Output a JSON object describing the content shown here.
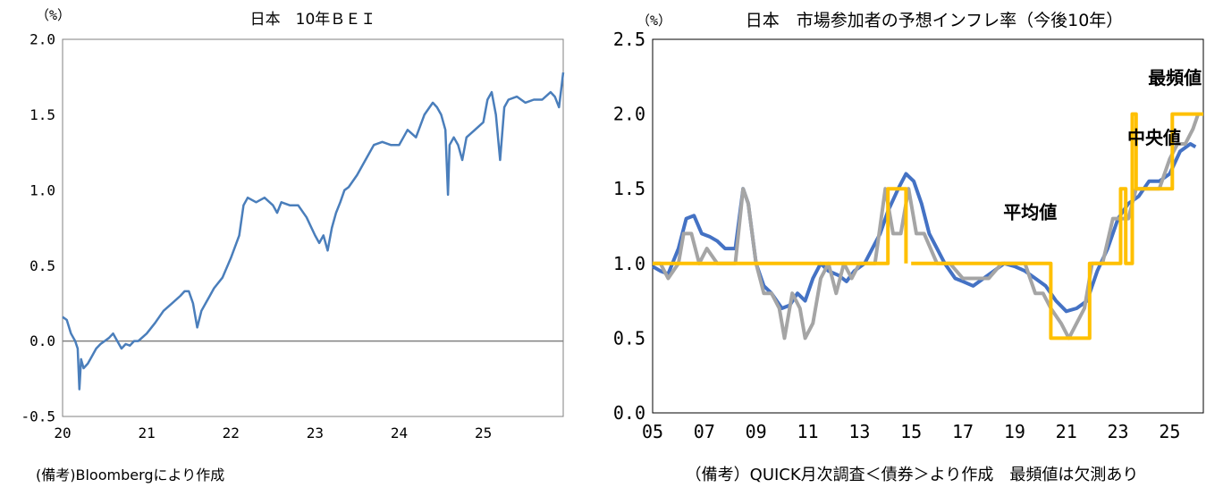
{
  "chart_data": [
    {
      "type": "line",
      "title": "日本　10年ＢＥＩ",
      "unit_label": "（%）",
      "note": "(備考)Bloombergにより作成",
      "ylim": [
        -0.5,
        2.0
      ],
      "xlim": [
        20,
        25.95
      ],
      "y_ticks": [
        {
          "value": -0.5,
          "label": "-0.5"
        },
        {
          "value": 0.0,
          "label": "0.0"
        },
        {
          "value": 0.5,
          "label": "0.5"
        },
        {
          "value": 1.0,
          "label": "1.0"
        },
        {
          "value": 1.5,
          "label": "1.5"
        },
        {
          "value": 2.0,
          "label": "2.0"
        }
      ],
      "x_ticks": [
        {
          "value": 20,
          "label": "20"
        },
        {
          "value": 21,
          "label": "21"
        },
        {
          "value": 22,
          "label": "22"
        },
        {
          "value": 23,
          "label": "23"
        },
        {
          "value": 24,
          "label": "24"
        },
        {
          "value": 25,
          "label": "25"
        }
      ],
      "zero_line": true,
      "series": [
        {
          "name": "BEI",
          "color": "#4a7ebb",
          "x": [
            20.0,
            20.05,
            20.1,
            20.15,
            20.18,
            20.2,
            20.22,
            20.25,
            20.3,
            20.35,
            20.4,
            20.45,
            20.5,
            20.55,
            20.6,
            20.65,
            20.7,
            20.75,
            20.8,
            20.85,
            20.9,
            21.0,
            21.1,
            21.2,
            21.3,
            21.4,
            21.45,
            21.5,
            21.55,
            21.6,
            21.65,
            21.7,
            21.75,
            21.8,
            21.9,
            22.0,
            22.1,
            22.15,
            22.2,
            22.3,
            22.4,
            22.5,
            22.55,
            22.6,
            22.7,
            22.8,
            22.9,
            23.0,
            23.05,
            23.1,
            23.15,
            23.2,
            23.25,
            23.3,
            23.35,
            23.4,
            23.5,
            23.6,
            23.7,
            23.8,
            23.9,
            24.0,
            24.1,
            24.2,
            24.3,
            24.4,
            24.45,
            24.5,
            24.55,
            24.58,
            24.6,
            24.65,
            24.7,
            24.75,
            24.8,
            24.9,
            25.0,
            25.05,
            25.1,
            25.15,
            25.2,
            25.25,
            25.3,
            25.4,
            25.5,
            25.6,
            25.7,
            25.8,
            25.85,
            25.9,
            25.95
          ],
          "y": [
            0.16,
            0.14,
            0.05,
            0.0,
            -0.05,
            -0.32,
            -0.12,
            -0.18,
            -0.15,
            -0.1,
            -0.05,
            -0.02,
            0.0,
            0.02,
            0.05,
            0.0,
            -0.05,
            -0.02,
            -0.03,
            0.0,
            0.0,
            0.05,
            0.12,
            0.2,
            0.25,
            0.3,
            0.33,
            0.33,
            0.25,
            0.09,
            0.2,
            0.25,
            0.3,
            0.35,
            0.42,
            0.55,
            0.7,
            0.9,
            0.95,
            0.92,
            0.95,
            0.9,
            0.85,
            0.92,
            0.9,
            0.9,
            0.82,
            0.7,
            0.65,
            0.7,
            0.6,
            0.75,
            0.85,
            0.92,
            1.0,
            1.02,
            1.1,
            1.2,
            1.3,
            1.32,
            1.3,
            1.3,
            1.4,
            1.35,
            1.5,
            1.58,
            1.55,
            1.5,
            1.4,
            0.97,
            1.3,
            1.35,
            1.3,
            1.2,
            1.35,
            1.4,
            1.45,
            1.6,
            1.65,
            1.5,
            1.2,
            1.55,
            1.6,
            1.62,
            1.58,
            1.6,
            1.6,
            1.65,
            1.62,
            1.55,
            1.78
          ]
        }
      ]
    },
    {
      "type": "line",
      "title": "日本　市場参加者の予想インフレ率（今後10年）",
      "unit_label": "（%）",
      "note": "（備考）QUICK月次調査＜債券＞より作成　最頻値は欠測あり",
      "ylim": [
        0.0,
        2.5
      ],
      "xlim": [
        2005,
        2026.3
      ],
      "y_ticks": [
        {
          "value": 0.0,
          "label": "0.0"
        },
        {
          "value": 0.5,
          "label": "0.5"
        },
        {
          "value": 1.0,
          "label": "1.0"
        },
        {
          "value": 1.5,
          "label": "1.5"
        },
        {
          "value": 2.0,
          "label": "2.0"
        },
        {
          "value": 2.5,
          "label": "2.5"
        }
      ],
      "x_ticks": [
        {
          "value": 2005,
          "label": "05"
        },
        {
          "value": 2007,
          "label": "07"
        },
        {
          "value": 2009,
          "label": "09"
        },
        {
          "value": 2011,
          "label": "11"
        },
        {
          "value": 2013,
          "label": "13"
        },
        {
          "value": 2015,
          "label": "15"
        },
        {
          "value": 2017,
          "label": "17"
        },
        {
          "value": 2019,
          "label": "19"
        },
        {
          "value": 2021,
          "label": "21"
        },
        {
          "value": 2023,
          "label": "23"
        },
        {
          "value": 2025,
          "label": "25"
        }
      ],
      "series": [
        {
          "name": "平均値",
          "color": "#4472c4",
          "x": [
            2005.0,
            2005.3,
            2005.6,
            2006.0,
            2006.3,
            2006.6,
            2006.9,
            2007.2,
            2007.5,
            2007.8,
            2008.2,
            2008.5,
            2008.7,
            2009.0,
            2009.3,
            2009.6,
            2010.0,
            2010.3,
            2010.6,
            2010.9,
            2011.2,
            2011.5,
            2011.8,
            2012.2,
            2012.5,
            2012.8,
            2013.2,
            2013.5,
            2013.8,
            2014.1,
            2014.5,
            2014.8,
            2015.1,
            2015.4,
            2015.7,
            2016.0,
            2016.3,
            2016.7,
            2017.0,
            2017.4,
            2017.8,
            2018.2,
            2018.6,
            2019.0,
            2019.4,
            2019.8,
            2020.2,
            2020.6,
            2021.0,
            2021.4,
            2021.8,
            2022.2,
            2022.6,
            2023.0,
            2023.4,
            2023.8,
            2024.2,
            2024.6,
            2025.0,
            2025.4,
            2025.8,
            2026.0
          ],
          "y": [
            0.98,
            0.95,
            0.93,
            1.1,
            1.3,
            1.32,
            1.2,
            1.18,
            1.15,
            1.1,
            1.1,
            1.5,
            1.4,
            1.0,
            0.85,
            0.8,
            0.7,
            0.72,
            0.8,
            0.75,
            0.9,
            1.0,
            0.95,
            0.92,
            0.88,
            0.95,
            1.0,
            1.1,
            1.2,
            1.35,
            1.5,
            1.6,
            1.55,
            1.4,
            1.2,
            1.1,
            1.0,
            0.9,
            0.88,
            0.85,
            0.9,
            0.95,
            1.0,
            0.98,
            0.95,
            0.9,
            0.85,
            0.75,
            0.68,
            0.7,
            0.75,
            0.95,
            1.1,
            1.3,
            1.4,
            1.45,
            1.55,
            1.55,
            1.6,
            1.75,
            1.8,
            1.78
          ]
        },
        {
          "name": "中央値",
          "color": "#a5a5a5",
          "x": [
            2005.0,
            2005.3,
            2005.6,
            2006.0,
            2006.2,
            2006.5,
            2006.8,
            2007.1,
            2007.5,
            2007.8,
            2008.2,
            2008.5,
            2008.7,
            2009.0,
            2009.3,
            2009.6,
            2009.9,
            2010.1,
            2010.4,
            2010.7,
            2010.9,
            2011.2,
            2011.5,
            2011.8,
            2012.1,
            2012.4,
            2012.7,
            2013.0,
            2013.3,
            2013.6,
            2014.0,
            2014.3,
            2014.6,
            2014.9,
            2015.2,
            2015.5,
            2016.0,
            2016.5,
            2017.0,
            2017.5,
            2018.0,
            2018.5,
            2019.0,
            2019.4,
            2019.8,
            2020.1,
            2020.4,
            2020.8,
            2021.1,
            2021.4,
            2021.7,
            2022.0,
            2022.4,
            2022.8,
            2023.1,
            2023.4,
            2023.7,
            2024.0,
            2024.3,
            2024.6,
            2025.0,
            2025.3,
            2025.6,
            2025.9,
            2026.1
          ],
          "y": [
            1.0,
            1.0,
            0.9,
            1.0,
            1.2,
            1.2,
            1.0,
            1.1,
            1.0,
            1.0,
            1.0,
            1.5,
            1.4,
            1.0,
            0.8,
            0.8,
            0.7,
            0.5,
            0.8,
            0.7,
            0.5,
            0.6,
            0.9,
            1.0,
            0.8,
            1.0,
            0.9,
            1.0,
            1.0,
            1.0,
            1.5,
            1.2,
            1.2,
            1.5,
            1.2,
            1.2,
            1.0,
            1.0,
            0.9,
            0.9,
            0.9,
            1.0,
            1.0,
            1.0,
            0.8,
            0.8,
            0.7,
            0.6,
            0.5,
            0.6,
            0.7,
            1.0,
            1.0,
            1.3,
            1.3,
            1.3,
            1.5,
            1.5,
            1.5,
            1.5,
            1.7,
            1.8,
            1.8,
            1.9,
            2.0
          ]
        },
        {
          "name": "最頻値",
          "color": "#ffc000",
          "segments": [
            {
              "x": [
                2005.0,
                2014.1,
                2014.1,
                2014.8,
                2014.8
              ],
              "y": [
                1.0,
                1.0,
                1.5,
                1.5,
                1.0
              ]
            },
            {
              "x": [
                2015.0,
                2020.4,
                2020.4,
                2021.9,
                2021.9,
                2023.1,
                2023.1,
                2023.3,
                2023.3,
                2023.55,
                2023.55,
                2023.7,
                2023.7,
                2025.1,
                2025.1,
                2026.3
              ],
              "y": [
                1.0,
                1.0,
                0.5,
                0.5,
                1.0,
                1.0,
                1.5,
                1.5,
                1.0,
                1.0,
                2.0,
                2.0,
                1.5,
                1.5,
                2.0,
                2.0
              ]
            }
          ]
        }
      ],
      "annotations": [
        {
          "text": "最頻値",
          "color": "#ffc000",
          "x": 2025.2,
          "y": 2.2
        },
        {
          "text": "中央値",
          "color": "#a5a5a5",
          "x": 2024.4,
          "y": 1.8
        },
        {
          "text": "平均値",
          "color": "#4472c4",
          "x": 2019.6,
          "y": 1.3
        }
      ]
    }
  ]
}
